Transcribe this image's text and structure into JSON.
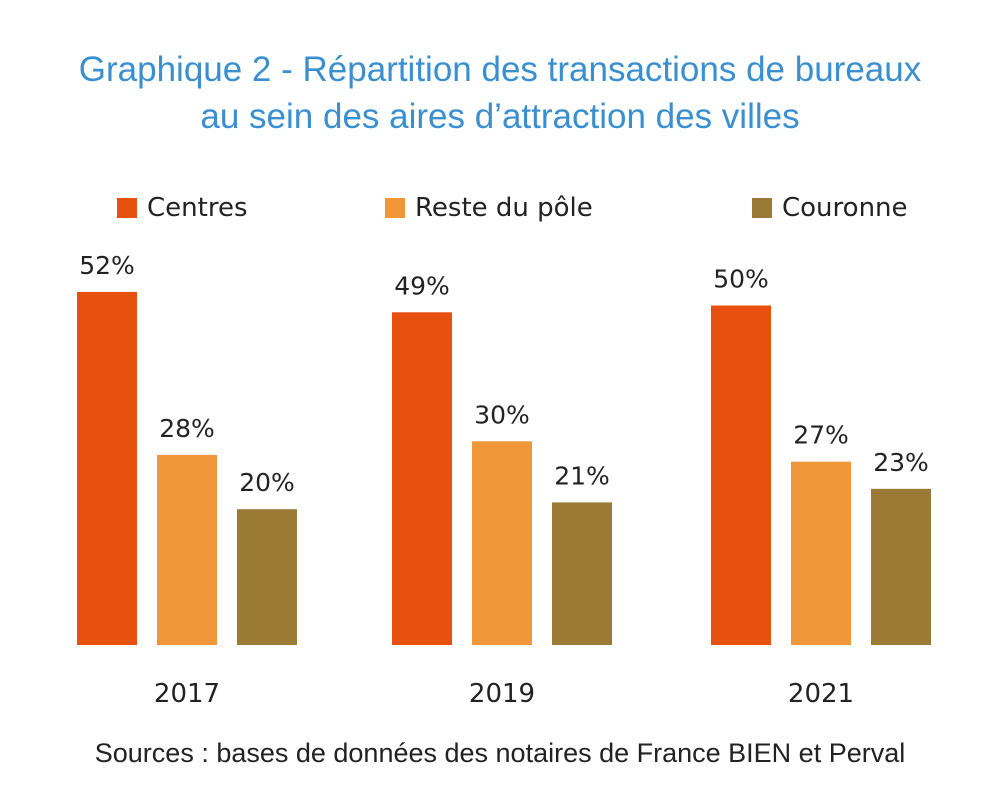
{
  "title_line1": "Graphique 2 - Répartition des transactions de bureaux",
  "title_line2": "au sein des aires d’attraction des villes",
  "source": "Sources : bases de données des notaires de France BIEN et Perval",
  "chart_data": {
    "type": "bar",
    "categories": [
      "2017",
      "2019",
      "2021"
    ],
    "series": [
      {
        "name": "Centres",
        "color": "#e8500f",
        "values": [
          52,
          49,
          50
        ]
      },
      {
        "name": "Reste du pôle",
        "color": "#f0973a",
        "values": [
          28,
          30,
          27
        ]
      },
      {
        "name": "Couronne",
        "color": "#9a7a35",
        "values": [
          20,
          21,
          23
        ]
      }
    ],
    "data_labels": [
      [
        "52%",
        "49%",
        "50%"
      ],
      [
        "28%",
        "30%",
        "27%"
      ],
      [
        "20%",
        "21%",
        "23%"
      ]
    ],
    "legend": "top",
    "grid": false,
    "ylim": [
      0,
      52
    ]
  }
}
